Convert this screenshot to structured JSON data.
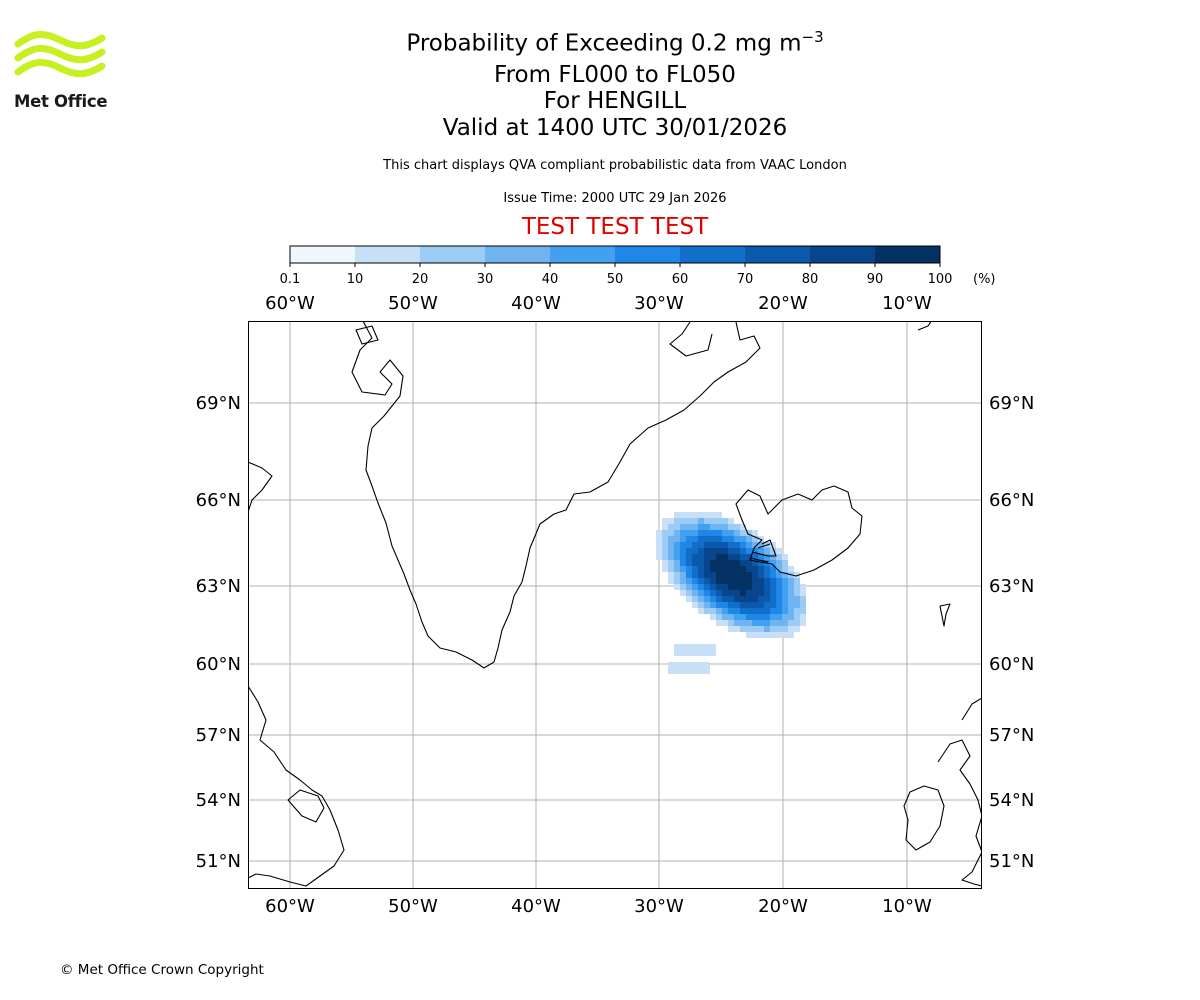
{
  "brand": {
    "name": "Met Office",
    "logo_color": "#c6f020"
  },
  "title": {
    "main_prefix": "Probability of Exceeding 0.2 mg m",
    "main_superscript": "−3",
    "levels": "From FL000 to FL050",
    "volcano": "For HENGILL",
    "valid": "Valid at 1400 UTC 30/01/2026"
  },
  "subtitle": "This chart displays QVA compliant probabilistic data from VAAC London",
  "issue_time": "Issue Time: 2000 UTC 29 Jan 2026",
  "test_banner": "TEST TEST TEST",
  "colorbar": {
    "ticks": [
      "0.1",
      "10",
      "20",
      "30",
      "40",
      "50",
      "60",
      "70",
      "80",
      "90",
      "100"
    ],
    "unit": "(%)",
    "colors": [
      "#f0f6fe",
      "#c7e0f8",
      "#9ccbf5",
      "#6fb3f1",
      "#42a0f0",
      "#1e87e8",
      "#116ec9",
      "#0a59ad",
      "#07468c",
      "#053265"
    ]
  },
  "map": {
    "lon_ticks": [
      "60°W",
      "50°W",
      "40°W",
      "30°W",
      "20°W",
      "10°W"
    ],
    "lat_ticks": [
      "69°N",
      "66°N",
      "63°N",
      "60°N",
      "57°N",
      "54°N",
      "51°N"
    ]
  },
  "copyright": "© Met Office Crown Copyright"
}
